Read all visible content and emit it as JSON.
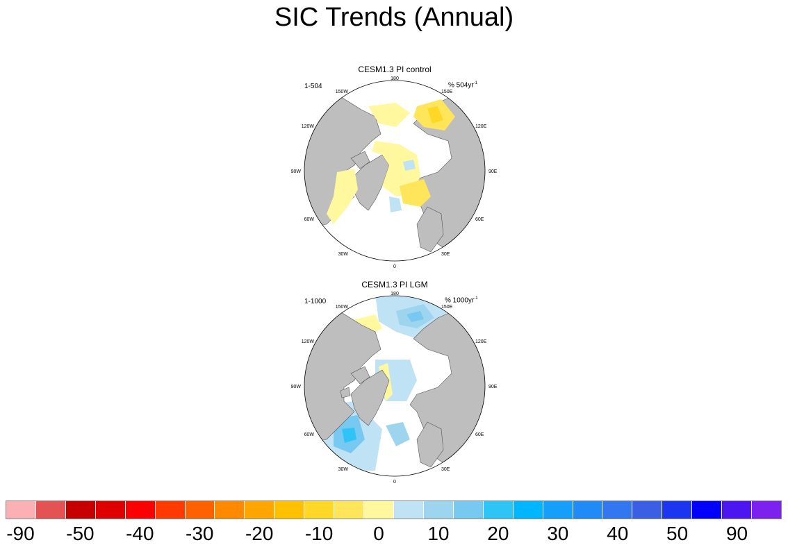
{
  "title": "SIC Trends (Annual)",
  "panels": [
    {
      "title": "CESM1.3 PI control",
      "left_label": "1-504",
      "right_label": "% 504yr",
      "right_sup": "-1"
    },
    {
      "title": "CESM1.3 PI LGM",
      "left_label": "1-1000",
      "right_label": "% 1000yr",
      "right_sup": "-1"
    }
  ],
  "longitude_labels": [
    "180",
    "150E",
    "120E",
    "90E",
    "60E",
    "30E",
    "0",
    "30W",
    "60W",
    "90W",
    "120W",
    "150W"
  ],
  "colorbar": {
    "colors": [
      "#fbb1b4",
      "#e35353",
      "#c60000",
      "#de0000",
      "#ff0000",
      "#ff3a00",
      "#ff6100",
      "#ff8a00",
      "#ffa500",
      "#ffc000",
      "#ffd726",
      "#ffe55a",
      "#fff89e",
      "#bfe3f5",
      "#9dd5ef",
      "#77c9f1",
      "#2ec4f5",
      "#00b6ff",
      "#159ffa",
      "#208bf6",
      "#3276f0",
      "#3a5fe4",
      "#1c35f0",
      "#0000ff",
      "#4b16f0",
      "#7d22ee"
    ],
    "labels": [
      "-90",
      "-50",
      "-40",
      "-30",
      "-20",
      "-10",
      "0",
      "10",
      "20",
      "30",
      "40",
      "50",
      "90"
    ]
  },
  "style": {
    "land": "#bebebe",
    "ocean_no_trend": "#ffffff"
  }
}
